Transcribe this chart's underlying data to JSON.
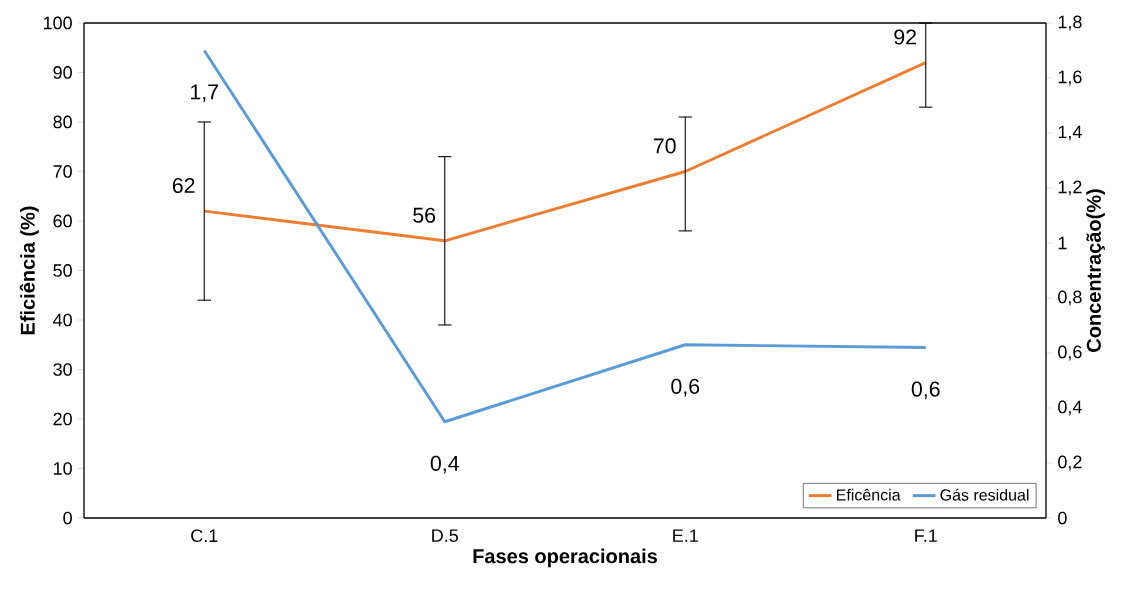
{
  "chart_data": {
    "type": "line",
    "xlabel": "Fases operacionais",
    "ylabel": "Eficiência (%)",
    "y2label": "Concentração(%)",
    "categories": [
      "C.1",
      "D.5",
      "E.1",
      "F.1"
    ],
    "series": [
      {
        "name": "Eficência",
        "color": "#ed7d31",
        "values": [
          62,
          56,
          70,
          92
        ],
        "errors": [
          [
            44,
            80
          ],
          [
            39,
            73
          ],
          [
            58,
            81
          ],
          [
            83,
            100
          ]
        ],
        "value_labels": [
          "62",
          "56",
          "70",
          "92"
        ]
      },
      {
        "name": "Gás residual",
        "color": "#5b9bd5",
        "axis": "y2",
        "values": [
          1.7,
          0.35,
          0.63,
          0.62
        ],
        "value_labels": [
          "1,7",
          "0,4",
          "0,6",
          "0,6"
        ]
      }
    ],
    "ylim": [
      0,
      100
    ],
    "yticks": [
      0,
      10,
      20,
      30,
      40,
      50,
      60,
      70,
      80,
      90,
      100
    ],
    "y2lim": [
      0,
      1.8
    ],
    "y2ticks": [
      0,
      {
        "value": 0.2,
        "label": "0,2"
      },
      {
        "value": 0.4,
        "label": "0,4"
      },
      {
        "value": 0.6,
        "label": "0,6"
      },
      {
        "value": 0.8,
        "label": "0,8"
      },
      1,
      {
        "value": 1.2,
        "label": "1,2"
      },
      {
        "value": 1.4,
        "label": "1,4"
      },
      {
        "value": 1.6,
        "label": "1,6"
      },
      {
        "value": 1.8,
        "label": "1,8"
      }
    ],
    "legend": "bottom right",
    "marker": "none",
    "line_style": "solid"
  }
}
